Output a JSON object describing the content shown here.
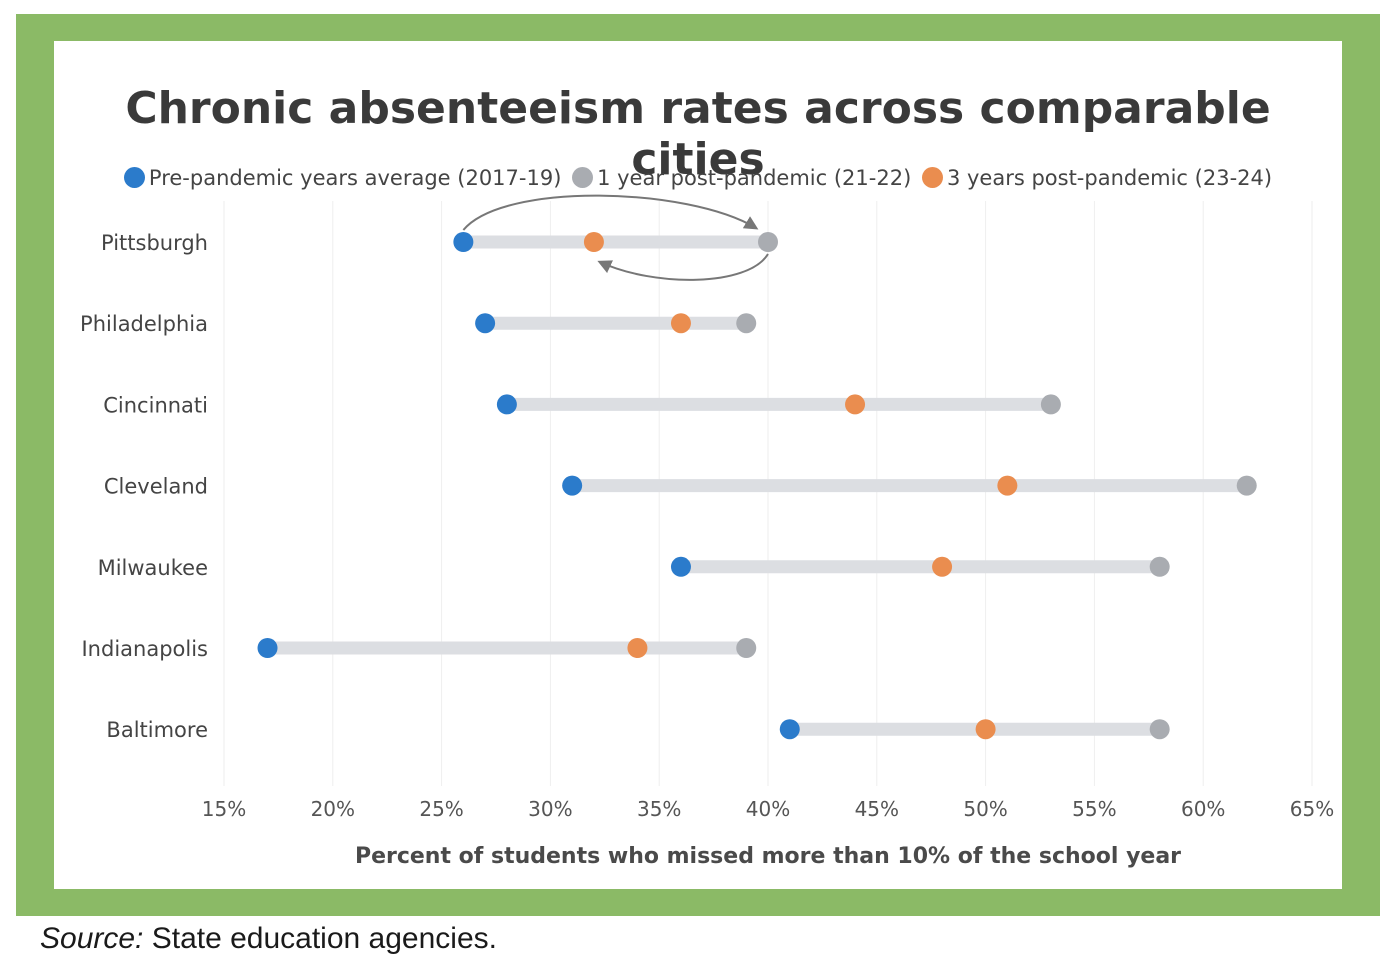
{
  "chart_data": {
    "type": "dumbbell",
    "title": "Chronic absenteeism rates across comparable cities",
    "xlabel": "Percent of students who missed more than 10% of the school year",
    "xlim": [
      15,
      65
    ],
    "xticks": [
      "15%",
      "20%",
      "25%",
      "30%",
      "35%",
      "40%",
      "45%",
      "50%",
      "55%",
      "60%",
      "65%"
    ],
    "xtick_values": [
      15,
      20,
      25,
      30,
      35,
      40,
      45,
      50,
      55,
      60,
      65
    ],
    "categories": [
      "Pittsburgh",
      "Philadelphia",
      "Cincinnati",
      "Cleveland",
      "Milwaukee",
      "Indianapolis",
      "Baltimore"
    ],
    "series": [
      {
        "name": "Pre-pandemic years average (2017-19)",
        "color": "#2b7bcb",
        "values": [
          26,
          27,
          28,
          31,
          36,
          17,
          41
        ]
      },
      {
        "name": "1 year post-pandemic (21-22)",
        "color": "#a9acb1",
        "values": [
          40,
          39,
          53,
          62,
          58,
          39,
          58
        ]
      },
      {
        "name": "3 years post-pandemic (23-24)",
        "color": "#ea8d4f",
        "values": [
          32,
          36,
          44,
          51,
          48,
          34,
          50
        ]
      }
    ],
    "annotation": {
      "category": "Pittsburgh",
      "description": "arrows"
    }
  },
  "source": {
    "label": "Source:",
    "text": " State education agencies."
  }
}
